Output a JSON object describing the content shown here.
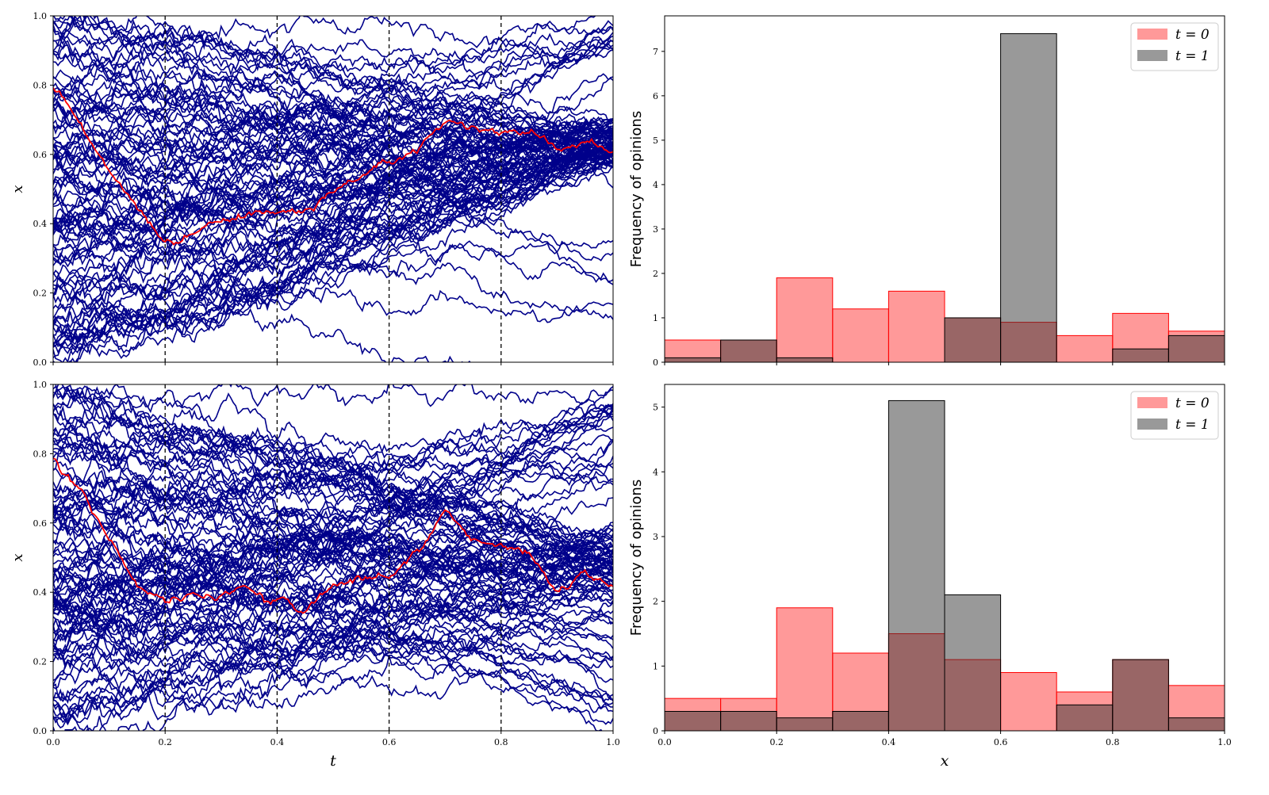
{
  "chart_data": [
    {
      "panel": "top-left",
      "type": "line",
      "description_note": "",
      "xlabel": "",
      "ylabel": "x",
      "xlim": [
        0,
        1
      ],
      "ylim": [
        0,
        1
      ],
      "xticks": [
        "0.0",
        "0.2",
        "0.4",
        "0.6",
        "0.8",
        "1.0"
      ],
      "yticks": [
        "0.0",
        "0.2",
        "0.4",
        "0.6",
        "0.8",
        "1.0"
      ],
      "show_xtick_labels": false,
      "vlines_dashed": [
        0.2,
        0.4,
        0.6,
        0.8
      ],
      "trajectory_count": 100,
      "trajectory_color": "#00008b",
      "highlight_color": "#ff0000",
      "highlight_path": {
        "t": [
          0.0,
          0.05,
          0.1,
          0.15,
          0.2,
          0.25,
          0.3,
          0.35,
          0.4,
          0.45,
          0.5,
          0.55,
          0.6,
          0.65,
          0.7,
          0.75,
          0.8,
          0.85,
          0.9,
          0.95,
          1.0
        ],
        "x": [
          0.79,
          0.68,
          0.56,
          0.45,
          0.33,
          0.37,
          0.4,
          0.43,
          0.44,
          0.45,
          0.49,
          0.53,
          0.58,
          0.61,
          0.69,
          0.67,
          0.66,
          0.67,
          0.61,
          0.63,
          0.61
        ]
      },
      "final_clusters": [
        {
          "center": 0.63,
          "spread": 0.04,
          "weight": 0.78
        },
        {
          "center": 0.18,
          "spread": 0.11,
          "weight": 0.1
        },
        {
          "center": 0.93,
          "spread": 0.05,
          "weight": 0.12
        }
      ]
    },
    {
      "panel": "bottom-left",
      "type": "line",
      "xlabel": "t",
      "ylabel": "x",
      "xlim": [
        0,
        1
      ],
      "ylim": [
        0,
        1
      ],
      "xticks": [
        "0.0",
        "0.2",
        "0.4",
        "0.6",
        "0.8",
        "1.0"
      ],
      "yticks": [
        "0.0",
        "0.2",
        "0.4",
        "0.6",
        "0.8",
        "1.0"
      ],
      "show_xtick_labels": true,
      "vlines_dashed": [
        0.2,
        0.4,
        0.6,
        0.8
      ],
      "trajectory_count": 100,
      "trajectory_color": "#00008b",
      "highlight_color": "#ff0000",
      "highlight_path": {
        "t": [
          0.0,
          0.05,
          0.1,
          0.15,
          0.2,
          0.25,
          0.3,
          0.35,
          0.4,
          0.45,
          0.5,
          0.55,
          0.6,
          0.65,
          0.7,
          0.75,
          0.8,
          0.85,
          0.9,
          0.95,
          1.0
        ],
        "x": [
          0.79,
          0.7,
          0.55,
          0.43,
          0.37,
          0.4,
          0.39,
          0.4,
          0.37,
          0.35,
          0.41,
          0.44,
          0.45,
          0.52,
          0.62,
          0.55,
          0.53,
          0.51,
          0.4,
          0.46,
          0.41
        ]
      },
      "final_clusters": [
        {
          "center": 0.49,
          "spread": 0.05,
          "weight": 0.52
        },
        {
          "center": 0.87,
          "spread": 0.08,
          "weight": 0.22
        },
        {
          "center": 0.2,
          "spread": 0.12,
          "weight": 0.26
        }
      ]
    },
    {
      "panel": "top-right",
      "type": "bar",
      "xlabel": "",
      "ylabel": "Frequency of opinions",
      "xlim": [
        0,
        1
      ],
      "ylim": [
        0,
        7.8
      ],
      "xticks": [
        "0.0",
        "0.2",
        "0.4",
        "0.6",
        "0.8",
        "1.0"
      ],
      "yticks": [
        "0",
        "1",
        "2",
        "3",
        "4",
        "5",
        "6",
        "7"
      ],
      "show_xtick_labels": false,
      "bin_edges": [
        0.0,
        0.1,
        0.2,
        0.3,
        0.4,
        0.5,
        0.6,
        0.7,
        0.8,
        0.9,
        1.0
      ],
      "series": [
        {
          "name": "t = 0",
          "color": "#ff0000",
          "alpha": 0.4,
          "values": [
            0.5,
            0.5,
            1.9,
            1.2,
            1.6,
            1.0,
            0.9,
            0.6,
            1.1,
            0.7
          ]
        },
        {
          "name": "t = 1",
          "color": "#333333",
          "alpha": 0.5,
          "values": [
            0.1,
            0.5,
            0.1,
            0.0,
            0.0,
            1.0,
            7.4,
            0.0,
            0.3,
            0.6
          ]
        }
      ],
      "legend": "top-right"
    },
    {
      "panel": "bottom-right",
      "type": "bar",
      "xlabel": "x",
      "ylabel": "Frequency of opinions",
      "xlim": [
        0,
        1
      ],
      "ylim": [
        0,
        5.35
      ],
      "xticks": [
        "0.0",
        "0.2",
        "0.4",
        "0.6",
        "0.8",
        "1.0"
      ],
      "yticks": [
        "0",
        "1",
        "2",
        "3",
        "4",
        "5"
      ],
      "show_xtick_labels": true,
      "bin_edges": [
        0.0,
        0.1,
        0.2,
        0.3,
        0.4,
        0.5,
        0.6,
        0.7,
        0.8,
        0.9,
        1.0
      ],
      "series": [
        {
          "name": "t = 0",
          "color": "#ff0000",
          "alpha": 0.4,
          "values": [
            0.5,
            0.5,
            1.9,
            1.2,
            1.5,
            1.1,
            0.9,
            0.6,
            1.1,
            0.7
          ]
        },
        {
          "name": "t = 1",
          "color": "#333333",
          "alpha": 0.5,
          "values": [
            0.3,
            0.3,
            0.2,
            0.3,
            5.1,
            2.1,
            0.0,
            0.4,
            1.1,
            0.2
          ]
        }
      ],
      "legend": "top-right"
    }
  ]
}
